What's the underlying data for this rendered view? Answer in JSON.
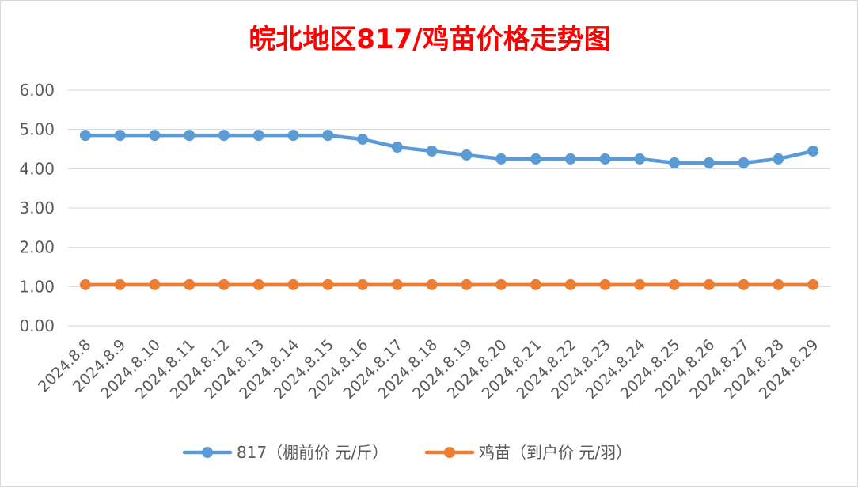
{
  "chart_data": {
    "type": "line",
    "title": "皖北地区817/鸡苗价格走势图",
    "xlabel": "",
    "ylabel": "",
    "ylim": [
      0,
      6
    ],
    "yticks": [
      "0.00",
      "1.00",
      "2.00",
      "3.00",
      "4.00",
      "5.00",
      "6.00"
    ],
    "categories": [
      "2024.8.8",
      "2024.8.9",
      "2024.8.10",
      "2024.8.11",
      "2024.8.12",
      "2024.8.13",
      "2024.8.14",
      "2024.8.15",
      "2024.8.16",
      "2024.8.17",
      "2024.8.18",
      "2024.8.19",
      "2024.8.20",
      "2024.8.21",
      "2024.8.22",
      "2024.8.23",
      "2024.8.24",
      "2024.8.25",
      "2024.8.26",
      "2024.8.27",
      "2024.8.28",
      "2024.8.29"
    ],
    "series": [
      {
        "name": "817（棚前价 元/斤）",
        "color": "#5B9BD5",
        "values": [
          4.85,
          4.85,
          4.85,
          4.85,
          4.85,
          4.85,
          4.85,
          4.85,
          4.75,
          4.55,
          4.45,
          4.35,
          4.25,
          4.25,
          4.25,
          4.25,
          4.25,
          4.15,
          4.15,
          4.15,
          4.25,
          4.45
        ]
      },
      {
        "name": "鸡苗（到户价 元/羽）",
        "color": "#ED7D31",
        "values": [
          1.05,
          1.05,
          1.05,
          1.05,
          1.05,
          1.05,
          1.05,
          1.05,
          1.05,
          1.05,
          1.05,
          1.05,
          1.05,
          1.05,
          1.05,
          1.05,
          1.05,
          1.05,
          1.05,
          1.05,
          1.05,
          1.05
        ]
      }
    ],
    "grid": true,
    "legend_position": "bottom",
    "title_color": "#FF0000",
    "grid_color": "#D9D9D9",
    "text_color": "#595959"
  }
}
